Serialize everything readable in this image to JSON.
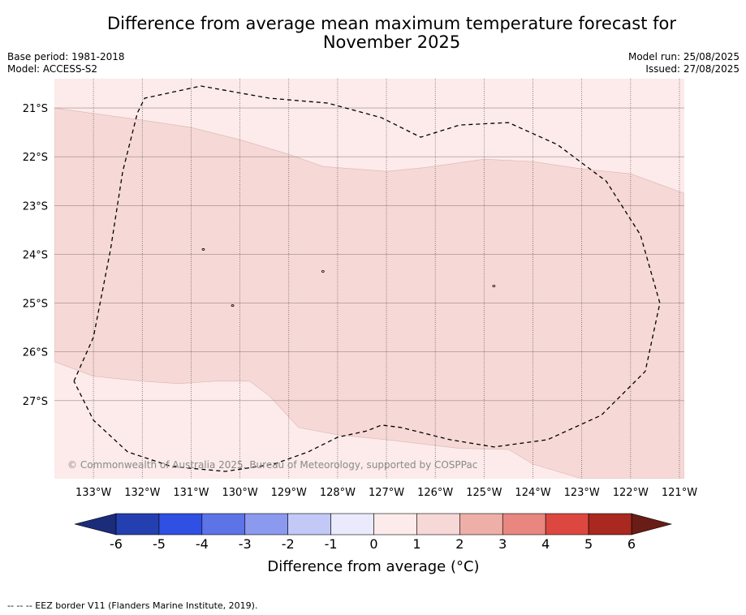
{
  "header": {
    "title_line1": "Difference from average mean maximum temperature forecast for",
    "title_line2": "November 2025",
    "base_period": "Base period: 1981-2018",
    "model": "Model: ACCESS-S2",
    "model_run": "Model run: 25/08/2025",
    "issued": "Issued: 27/08/2025"
  },
  "copyright": "© Commonwealth of Australia 2025, Bureau of Meteorology, supported by COSPPac",
  "footer_note": "--  --  -- EEZ border V11 (Flanders Marine Institute, 2019).",
  "colors": {
    "land_bg": "#fcebea",
    "anomaly_1_2": "#f6d8d6",
    "eez_line": "#000000",
    "grid": "#555555"
  },
  "chart_data": {
    "type": "heatmap",
    "title": "Difference from average mean maximum temperature forecast for November 2025",
    "x_ticks": [
      "133°W",
      "132°W",
      "131°W",
      "130°W",
      "129°W",
      "128°W",
      "127°W",
      "126°W",
      "125°W",
      "124°W",
      "123°W",
      "122°W",
      "121°W"
    ],
    "x_tick_values": [
      -133,
      -132,
      -131,
      -130,
      -129,
      -128,
      -127,
      -126,
      -125,
      -124,
      -123,
      -122,
      -121
    ],
    "y_ticks": [
      "21°S",
      "22°S",
      "23°S",
      "24°S",
      "25°S",
      "26°S",
      "27°S"
    ],
    "y_tick_values": [
      -21,
      -22,
      -23,
      -24,
      -25,
      -26,
      -27
    ],
    "xlim": [
      -133.8,
      -120.9
    ],
    "ylim": [
      -28.6,
      -20.4
    ],
    "grid": true,
    "colorbar": {
      "label": "Difference from average (°C)",
      "ticks": [
        "-6",
        "-5",
        "-4",
        "-3",
        "-2",
        "-1",
        "0",
        "1",
        "2",
        "3",
        "4",
        "5",
        "6"
      ],
      "bins": [
        {
          "range": [
            -6,
            -5
          ],
          "color": "#2440b0"
        },
        {
          "range": [
            -5,
            -4
          ],
          "color": "#2f50e2"
        },
        {
          "range": [
            -4,
            -3
          ],
          "color": "#5d74e7"
        },
        {
          "range": [
            -3,
            -2
          ],
          "color": "#8b9aee"
        },
        {
          "range": [
            -2,
            -1
          ],
          "color": "#c3c9f7"
        },
        {
          "range": [
            -1,
            0
          ],
          "color": "#e9ebfc"
        },
        {
          "range": [
            0,
            1
          ],
          "color": "#fcebea"
        },
        {
          "range": [
            1,
            2
          ],
          "color": "#f6d8d6"
        },
        {
          "range": [
            2,
            3
          ],
          "color": "#eeafa9"
        },
        {
          "range": [
            3,
            4
          ],
          "color": "#e8867f"
        },
        {
          "range": [
            4,
            5
          ],
          "color": "#dc4840"
        },
        {
          "range": [
            5,
            6
          ],
          "color": "#a92820"
        }
      ],
      "under_color": "#1a2c7a",
      "over_color": "#6a1c16"
    },
    "regions": [
      {
        "label": "1 to 2",
        "polygon": [
          [
            -133.8,
            -21.0
          ],
          [
            -132.0,
            -21.25
          ],
          [
            -131.0,
            -21.4
          ],
          [
            -130.0,
            -21.65
          ],
          [
            -129.0,
            -21.95
          ],
          [
            -128.3,
            -22.2
          ],
          [
            -127.0,
            -22.3
          ],
          [
            -126.2,
            -22.22
          ],
          [
            -125.0,
            -22.05
          ],
          [
            -124.0,
            -22.1
          ],
          [
            -123.0,
            -22.25
          ],
          [
            -122.0,
            -22.35
          ],
          [
            -120.9,
            -22.75
          ],
          [
            -120.9,
            -28.6
          ],
          [
            -123.0,
            -28.6
          ],
          [
            -124.0,
            -28.3
          ],
          [
            -124.5,
            -28.0
          ],
          [
            -125.5,
            -27.98
          ],
          [
            -127.0,
            -27.8
          ],
          [
            -128.0,
            -27.7
          ],
          [
            -128.8,
            -27.55
          ],
          [
            -129.4,
            -26.9
          ],
          [
            -129.8,
            -26.6
          ],
          [
            -130.5,
            -26.6
          ],
          [
            -131.25,
            -26.65
          ],
          [
            -132.0,
            -26.6
          ],
          [
            -133.0,
            -26.5
          ],
          [
            -133.8,
            -26.2
          ]
        ]
      }
    ],
    "eez_border": [
      [
        -133.4,
        -26.6
      ],
      [
        -133.0,
        -25.7
      ],
      [
        -132.65,
        -23.9
      ],
      [
        -132.4,
        -22.3
      ],
      [
        -132.1,
        -21.1
      ],
      [
        -131.95,
        -20.8
      ],
      [
        -130.8,
        -20.55
      ],
      [
        -129.4,
        -20.8
      ],
      [
        -128.2,
        -20.9
      ],
      [
        -127.1,
        -21.2
      ],
      [
        -126.3,
        -21.6
      ],
      [
        -125.5,
        -21.35
      ],
      [
        -124.5,
        -21.3
      ],
      [
        -123.5,
        -21.75
      ],
      [
        -122.5,
        -22.5
      ],
      [
        -121.8,
        -23.6
      ],
      [
        -121.4,
        -25.0
      ],
      [
        -121.7,
        -26.4
      ],
      [
        -122.6,
        -27.3
      ],
      [
        -123.7,
        -27.8
      ],
      [
        -124.8,
        -27.95
      ],
      [
        -125.7,
        -27.8
      ],
      [
        -126.7,
        -27.55
      ],
      [
        -127.1,
        -27.5
      ],
      [
        -127.4,
        -27.62
      ],
      [
        -128.0,
        -27.75
      ],
      [
        -128.6,
        -28.05
      ],
      [
        -129.3,
        -28.3
      ],
      [
        -130.3,
        -28.45
      ],
      [
        -131.4,
        -28.35
      ],
      [
        -132.3,
        -28.05
      ],
      [
        -133.0,
        -27.4
      ],
      [
        -133.4,
        -26.6
      ]
    ],
    "islands": [
      [
        -130.75,
        -23.9
      ],
      [
        -128.3,
        -24.35
      ],
      [
        -124.8,
        -24.65
      ],
      [
        -130.15,
        -25.05
      ]
    ]
  }
}
